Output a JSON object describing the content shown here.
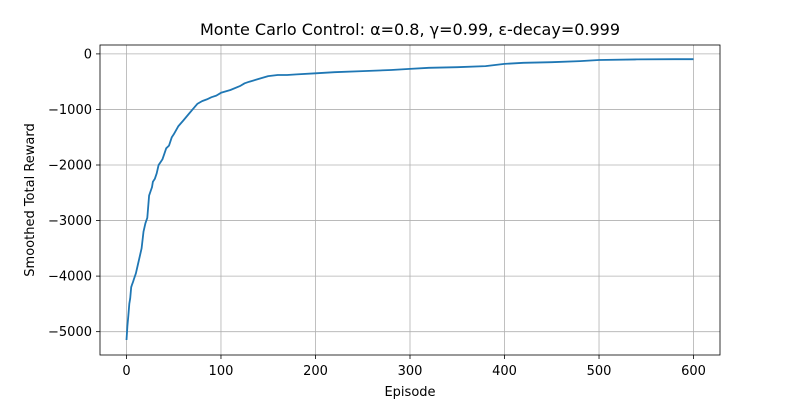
{
  "chart_data": {
    "type": "line",
    "title": "Monte Carlo Control: α=0.8, γ=0.99, ε-decay=0.999",
    "xlabel": "Episode",
    "ylabel": "Smoothed Total Reward",
    "xlim": [
      -28,
      628
    ],
    "ylim": [
      -5420,
      160
    ],
    "xticks": [
      0,
      100,
      200,
      300,
      400,
      500,
      600
    ],
    "xtick_labels": [
      "0",
      "100",
      "200",
      "300",
      "400",
      "500",
      "600"
    ],
    "yticks": [
      0,
      -1000,
      -2000,
      -3000,
      -4000,
      -5000
    ],
    "ytick_labels": [
      "0",
      "−1000",
      "−2000",
      "−3000",
      "−4000",
      "−5000"
    ],
    "grid": true,
    "legend": "none",
    "colors": {
      "line": "#1f77b4",
      "grid": "#b0b0b0",
      "axes": "#000000"
    },
    "series": [
      {
        "x": [
          0,
          1,
          2,
          3,
          4,
          5,
          6,
          7,
          8,
          10,
          12,
          14,
          16,
          18,
          20,
          22,
          24,
          26,
          27,
          28,
          30,
          32,
          34,
          36,
          38,
          40,
          42,
          45,
          48,
          50,
          55,
          60,
          65,
          70,
          75,
          80,
          85,
          90,
          95,
          100,
          110,
          120,
          125,
          130,
          140,
          150,
          160,
          170,
          180,
          200,
          220,
          250,
          280,
          300,
          320,
          350,
          380,
          400,
          420,
          450,
          480,
          500,
          540,
          580,
          600
        ],
        "y": [
          -5150,
          -4900,
          -4700,
          -4500,
          -4400,
          -4200,
          -4150,
          -4100,
          -4050,
          -3950,
          -3800,
          -3650,
          -3500,
          -3200,
          -3050,
          -2950,
          -2550,
          -2450,
          -2400,
          -2300,
          -2250,
          -2150,
          -2000,
          -1950,
          -1900,
          -1800,
          -1700,
          -1650,
          -1500,
          -1450,
          -1300,
          -1200,
          -1100,
          -1000,
          -900,
          -850,
          -820,
          -780,
          -750,
          -700,
          -650,
          -580,
          -530,
          -500,
          -450,
          -400,
          -380,
          -380,
          -370,
          -350,
          -330,
          -310,
          -290,
          -270,
          -250,
          -240,
          -220,
          -180,
          -160,
          -150,
          -130,
          -110,
          -100,
          -95,
          -95
        ]
      }
    ]
  }
}
